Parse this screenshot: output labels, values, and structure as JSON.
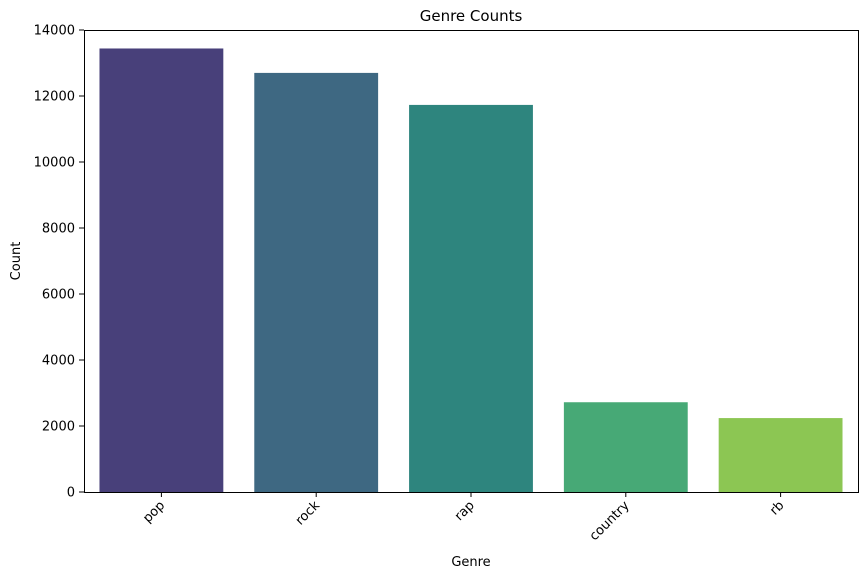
{
  "chart_data": {
    "type": "bar",
    "title": "Genre Counts",
    "xlabel": "Genre",
    "ylabel": "Count",
    "categories": [
      "pop",
      "rock",
      "rap",
      "country",
      "rb"
    ],
    "values": [
      13440,
      12700,
      11730,
      2720,
      2240
    ],
    "colors": [
      "#48407a",
      "#3e6882",
      "#2e857e",
      "#47a976",
      "#8cc653"
    ],
    "ylim": [
      0,
      14000
    ],
    "yticks": [
      0,
      2000,
      4000,
      6000,
      8000,
      10000,
      12000,
      14000
    ],
    "ytick_labels": [
      "0",
      "2000",
      "4000",
      "6000",
      "8000",
      "10000",
      "12000",
      "14000"
    ],
    "x_tick_rotation_deg": 45,
    "grid": false,
    "legend": "none"
  }
}
